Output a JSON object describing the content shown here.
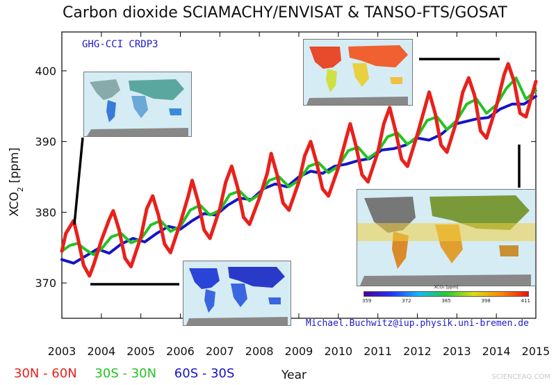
{
  "title": "Carbon dioxide SCIAMACHY/ENVISAT & TANSO-FTS/GOSAT",
  "tag": "GHG-CCI CRDP3",
  "email": "Michael.Buchwitz@iup.physik.uni-bremen.de",
  "watermark": "SCIENCEAQ.COM",
  "colorbar": {
    "label": "XCO₂ [ppm]",
    "ticks": [
      "359",
      "372",
      "385",
      "398",
      "411"
    ],
    "colors": [
      "#4b0099",
      "#2233ff",
      "#11bbff",
      "#22cc33",
      "#dddd11",
      "#ff8800",
      "#ee1111"
    ]
  },
  "legend": [
    {
      "label": "30N - 60N",
      "color": "#e8211c"
    },
    {
      "label": "30S - 30N",
      "color": "#22c322"
    },
    {
      "label": "60S - 30S",
      "color": "#1414c8"
    }
  ],
  "chart_data": {
    "type": "line",
    "xlabel": "Year",
    "ylabel": "XCO₂ [ppm]",
    "xlim": [
      2003.0,
      2015.0
    ],
    "ylim": [
      365.0,
      405.5
    ],
    "xticks": [
      2003,
      2004,
      2005,
      2006,
      2007,
      2008,
      2009,
      2010,
      2011,
      2012,
      2013,
      2014,
      2015
    ],
    "yticks": [
      370,
      380,
      390,
      400
    ],
    "series": [
      {
        "name": "30N - 60N",
        "color": "#e8211c",
        "x": [
          2003.0,
          2003.1,
          2003.3,
          2003.4,
          2003.55,
          2003.7,
          2003.8,
          2004.0,
          2004.2,
          2004.3,
          2004.45,
          2004.6,
          2004.75,
          2005.0,
          2005.15,
          2005.3,
          2005.45,
          2005.6,
          2005.75,
          2006.0,
          2006.2,
          2006.3,
          2006.45,
          2006.6,
          2006.75,
          2007.0,
          2007.15,
          2007.3,
          2007.45,
          2007.6,
          2007.75,
          2008.0,
          2008.2,
          2008.3,
          2008.45,
          2008.6,
          2008.75,
          2009.0,
          2009.15,
          2009.3,
          2009.45,
          2009.6,
          2009.75,
          2010.0,
          2010.2,
          2010.3,
          2010.45,
          2010.6,
          2010.75,
          2011.0,
          2011.15,
          2011.3,
          2011.45,
          2011.6,
          2011.75,
          2012.0,
          2012.2,
          2012.3,
          2012.45,
          2012.6,
          2012.75,
          2013.0,
          2013.15,
          2013.3,
          2013.45,
          2013.6,
          2013.75,
          2014.0,
          2014.2,
          2014.3,
          2014.45,
          2014.6,
          2014.75,
          2015.0
        ],
        "values": [
          374.5,
          377.0,
          378.8,
          376.5,
          372.5,
          371.0,
          372.5,
          376.0,
          379.0,
          380.2,
          377.5,
          373.5,
          372.3,
          376.5,
          380.5,
          382.3,
          379.5,
          375.5,
          374.3,
          378.5,
          382.3,
          384.5,
          381.5,
          377.5,
          376.3,
          380.5,
          384.3,
          386.5,
          383.5,
          379.3,
          378.3,
          382.0,
          385.5,
          388.3,
          385.3,
          381.3,
          380.3,
          384.3,
          388.0,
          390.0,
          387.0,
          383.3,
          382.3,
          386.3,
          390.5,
          392.5,
          389.3,
          385.3,
          384.3,
          388.5,
          392.5,
          394.8,
          391.5,
          387.5,
          386.5,
          391.0,
          395.0,
          397.0,
          394.0,
          389.5,
          388.5,
          393.0,
          397.0,
          399.0,
          396.5,
          391.5,
          390.5,
          395.0,
          399.5,
          401.0,
          398.5,
          394.0,
          393.5,
          398.5
        ]
      },
      {
        "name": "30S - 30N",
        "color": "#22c322",
        "x": [
          2003.0,
          2003.2,
          2003.4,
          2003.6,
          2003.8,
          2004.0,
          2004.25,
          2004.5,
          2004.75,
          2005.0,
          2005.25,
          2005.5,
          2005.75,
          2006.0,
          2006.25,
          2006.5,
          2006.75,
          2007.0,
          2007.25,
          2007.5,
          2007.75,
          2008.0,
          2008.25,
          2008.5,
          2008.75,
          2009.0,
          2009.25,
          2009.5,
          2009.75,
          2010.0,
          2010.25,
          2010.5,
          2010.75,
          2011.0,
          2011.25,
          2011.5,
          2011.75,
          2012.0,
          2012.25,
          2012.5,
          2012.75,
          2013.0,
          2013.25,
          2013.5,
          2013.75,
          2014.0,
          2014.25,
          2014.5,
          2014.75,
          2015.0
        ],
        "values": [
          374.5,
          375.3,
          375.6,
          374.7,
          374.0,
          374.8,
          376.5,
          377.0,
          375.7,
          376.2,
          378.2,
          378.8,
          377.3,
          378.0,
          380.3,
          381.0,
          379.6,
          380.3,
          382.5,
          383.0,
          381.6,
          382.5,
          384.5,
          385.0,
          383.6,
          384.5,
          386.5,
          387.0,
          385.6,
          386.5,
          388.7,
          389.2,
          387.6,
          388.6,
          390.7,
          391.2,
          389.6,
          390.7,
          393.0,
          393.5,
          391.7,
          393.0,
          395.3,
          396.0,
          394.0,
          395.2,
          397.5,
          399.0,
          396.0,
          397.2
        ]
      },
      {
        "name": "60S - 30S",
        "color": "#1414c8",
        "x": [
          2003.0,
          2003.3,
          2003.6,
          2003.9,
          2004.2,
          2004.5,
          2004.8,
          2005.1,
          2005.4,
          2005.7,
          2006.0,
          2006.3,
          2006.6,
          2006.9,
          2007.2,
          2007.5,
          2007.8,
          2008.1,
          2008.4,
          2008.7,
          2009.0,
          2009.3,
          2009.6,
          2009.9,
          2010.2,
          2010.5,
          2010.8,
          2011.1,
          2011.4,
          2011.7,
          2012.0,
          2012.3,
          2012.6,
          2012.9,
          2013.2,
          2013.5,
          2013.8,
          2014.1,
          2014.4,
          2014.7,
          2015.0
        ],
        "values": [
          373.3,
          372.8,
          373.8,
          374.8,
          374.2,
          375.5,
          376.3,
          375.8,
          377.0,
          378.0,
          377.6,
          378.8,
          379.8,
          379.6,
          381.0,
          382.0,
          381.8,
          383.3,
          384.0,
          383.6,
          385.0,
          385.8,
          385.5,
          386.5,
          386.8,
          387.3,
          387.6,
          388.8,
          389.0,
          389.5,
          390.5,
          390.2,
          391.0,
          392.4,
          392.8,
          393.2,
          393.4,
          394.6,
          395.3,
          395.3,
          396.4
        ]
      }
    ]
  }
}
